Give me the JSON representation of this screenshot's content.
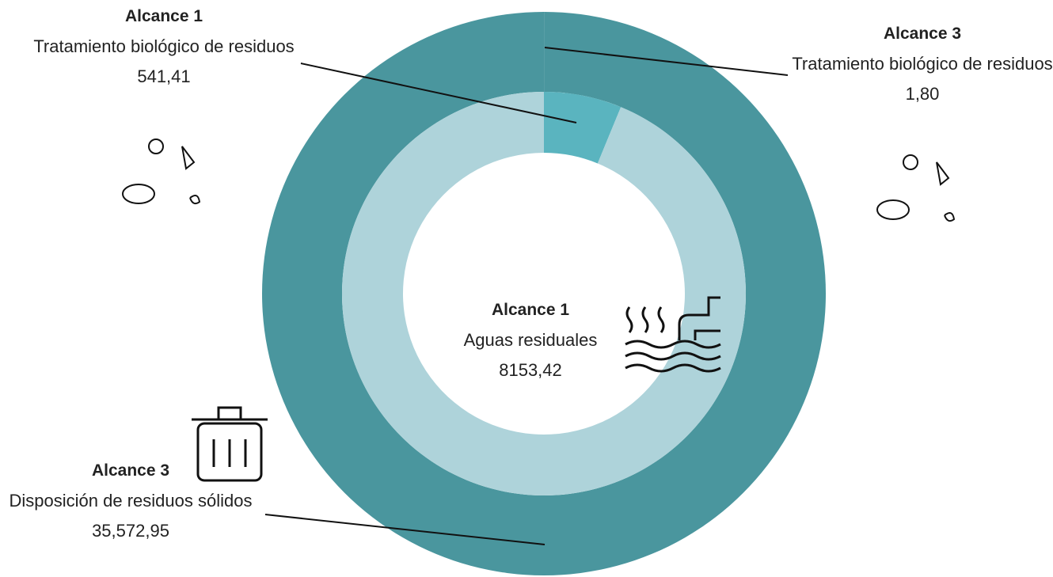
{
  "chart_data": {
    "type": "donut",
    "series": [
      {
        "name": "Alcance 3",
        "colors": [
          "#4a969e",
          "#4a969e"
        ],
        "categories": [
          "Tratamiento biológico de residuos",
          "Disposición de residuos sólidos"
        ],
        "values": [
          1.8,
          35572.95
        ],
        "value_labels": [
          "1,80",
          "35,572,95"
        ]
      },
      {
        "name": "Alcance 1",
        "colors": [
          "#5ab4bf",
          "#aed3da"
        ],
        "categories": [
          "Tratamiento biológico de residuos",
          "Aguas residuales"
        ],
        "values": [
          541.41,
          8153.42
        ],
        "value_labels": [
          "541,41",
          "8153,42"
        ]
      }
    ]
  }
}
